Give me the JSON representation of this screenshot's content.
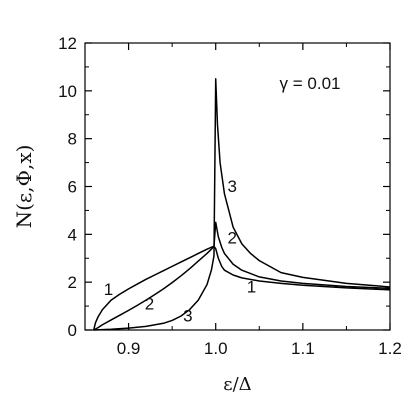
{
  "chart_data": {
    "type": "line",
    "xlabel": "ε/Δ",
    "ylabel": "N(ε,Φ,x)",
    "xlim": [
      0.85,
      1.2
    ],
    "ylim": [
      0,
      12
    ],
    "x_ticks": [
      0.9,
      1.0,
      1.1,
      1.2
    ],
    "x_tick_labels": [
      "0.9",
      "1.0",
      "1.1",
      "1.2"
    ],
    "y_ticks": [
      0,
      2,
      4,
      6,
      8,
      10,
      12
    ],
    "y_tick_labels": [
      "0",
      "2",
      "4",
      "6",
      "8",
      "10",
      "12"
    ],
    "annotation": "γ = 0.01",
    "grid": false,
    "legend": "none",
    "series": [
      {
        "label": "1",
        "x": [
          0.86,
          0.862,
          0.865,
          0.87,
          0.875,
          0.88,
          0.89,
          0.9,
          0.91,
          0.92,
          0.93,
          0.94,
          0.95,
          0.96,
          0.97,
          0.98,
          0.99,
          0.995,
          0.998,
          1.0,
          1.003,
          1.007,
          1.01,
          1.02,
          1.03,
          1.05,
          1.075,
          1.1,
          1.15,
          1.2
        ],
        "y": [
          0.0,
          0.3,
          0.55,
          0.85,
          1.05,
          1.25,
          1.5,
          1.72,
          1.92,
          2.12,
          2.3,
          2.48,
          2.66,
          2.84,
          3.02,
          3.2,
          3.38,
          3.46,
          3.5,
          3.4,
          3.0,
          2.65,
          2.5,
          2.3,
          2.18,
          2.05,
          1.95,
          1.87,
          1.76,
          1.68
        ]
      },
      {
        "label": "2",
        "x": [
          0.86,
          0.865,
          0.87,
          0.88,
          0.89,
          0.9,
          0.91,
          0.92,
          0.93,
          0.94,
          0.95,
          0.96,
          0.97,
          0.98,
          0.99,
          0.995,
          0.998,
          1.0,
          1.003,
          1.007,
          1.01,
          1.02,
          1.03,
          1.05,
          1.075,
          1.1,
          1.15,
          1.2
        ],
        "y": [
          0.0,
          0.1,
          0.22,
          0.42,
          0.62,
          0.82,
          1.03,
          1.25,
          1.48,
          1.72,
          1.98,
          2.26,
          2.56,
          2.88,
          3.2,
          3.38,
          3.5,
          4.5,
          3.9,
          3.45,
          3.2,
          2.75,
          2.5,
          2.22,
          2.05,
          1.95,
          1.82,
          1.74
        ]
      },
      {
        "label": "3",
        "x": [
          0.86,
          0.88,
          0.9,
          0.92,
          0.94,
          0.95,
          0.96,
          0.97,
          0.98,
          0.99,
          0.995,
          0.998,
          1.0,
          1.002,
          1.005,
          1.01,
          1.02,
          1.03,
          1.04,
          1.05,
          1.075,
          1.1,
          1.15,
          1.2
        ],
        "y": [
          0.0,
          0.03,
          0.08,
          0.15,
          0.28,
          0.4,
          0.58,
          0.85,
          1.25,
          1.9,
          2.5,
          3.1,
          10.5,
          8.6,
          7.0,
          5.7,
          4.3,
          3.6,
          3.2,
          2.9,
          2.4,
          2.2,
          1.95,
          1.8
        ]
      }
    ],
    "curve_labels": [
      {
        "text": "1",
        "x": 0.877,
        "y": 1.65
      },
      {
        "text": "2",
        "x": 0.924,
        "y": 1.05
      },
      {
        "text": "3",
        "x": 0.968,
        "y": 0.55
      },
      {
        "text": "1",
        "x": 1.041,
        "y": 1.75
      },
      {
        "text": "2",
        "x": 1.019,
        "y": 3.8
      },
      {
        "text": "3",
        "x": 1.019,
        "y": 5.95
      }
    ]
  }
}
